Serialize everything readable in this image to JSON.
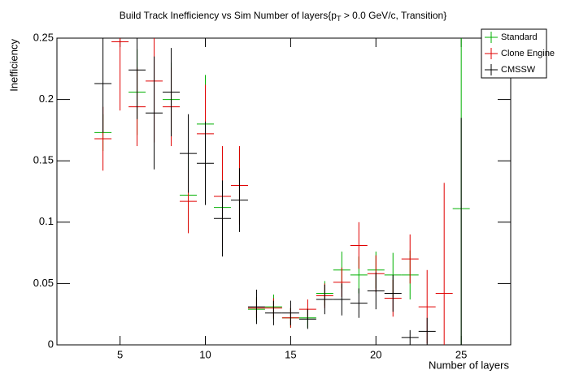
{
  "chart_data": {
    "type": "errorbar",
    "title": [
      "Build Track Inefficiency vs Sim Number of layers{p",
      "T",
      " > 0.0 GeV/c, Transition}"
    ],
    "x_label": "Number of layers",
    "y_label": "Inefficiency",
    "x": [
      4,
      5,
      6,
      7,
      8,
      9,
      10,
      11,
      12,
      13,
      14,
      15,
      16,
      17,
      18,
      19,
      20,
      21,
      22,
      23,
      24,
      25
    ],
    "xlim": [
      1.3,
      27.9
    ],
    "ylim": [
      0,
      0.25
    ],
    "xticks": [
      5,
      10,
      15,
      20,
      25
    ],
    "yticks": [
      0,
      0.05,
      0.1,
      0.15,
      0.2,
      0.25
    ],
    "legend": "top-right",
    "series": [
      {
        "name": "Standard",
        "color": "#00b000",
        "values": [
          0.173,
          null,
          0.206,
          null,
          0.2,
          0.122,
          0.18,
          0.112,
          0.13,
          0.029,
          0.031,
          0.022,
          0.022,
          0.042,
          0.061,
          0.057,
          0.061,
          0.057,
          0.057,
          null,
          null,
          0.111
        ],
        "errors": [
          0.015,
          null,
          0.035,
          null,
          0.03,
          0.03,
          0.04,
          0.03,
          0.03,
          0.01,
          0.01,
          0.008,
          0.008,
          0.01,
          0.015,
          0.015,
          0.015,
          0.018,
          0.02,
          null,
          null,
          0.14
        ]
      },
      {
        "name": "Clone Engine",
        "color": "#e00000",
        "values": [
          0.168,
          0.247,
          0.194,
          0.215,
          0.194,
          0.117,
          0.172,
          0.121,
          0.13,
          0.03,
          0.03,
          0.022,
          0.029,
          0.04,
          0.051,
          0.081,
          0.058,
          0.038,
          0.07,
          0.031,
          0.042,
          null
        ],
        "errors": [
          0.026,
          0.056,
          0.032,
          0.05,
          0.032,
          0.026,
          0.04,
          0.041,
          0.032,
          0.008,
          0.008,
          0.008,
          0.008,
          0.01,
          0.012,
          0.019,
          0.015,
          0.015,
          0.02,
          0.03,
          0.09,
          null
        ]
      },
      {
        "name": "CMSSW",
        "color": "#000000",
        "values": [
          0.213,
          null,
          0.224,
          0.189,
          0.206,
          0.156,
          0.148,
          0.103,
          0.118,
          0.031,
          0.026,
          0.026,
          0.021,
          0.037,
          0.037,
          0.034,
          0.044,
          0.042,
          0.006,
          0.011,
          null,
          0
        ],
        "errors": [
          0.04,
          null,
          0.04,
          0.046,
          0.036,
          0.032,
          0.034,
          0.031,
          0.026,
          0.014,
          0.01,
          0.01,
          0.008,
          0.012,
          0.013,
          0.012,
          0.015,
          0.015,
          0.006,
          0.011,
          null,
          0.185
        ]
      }
    ]
  }
}
